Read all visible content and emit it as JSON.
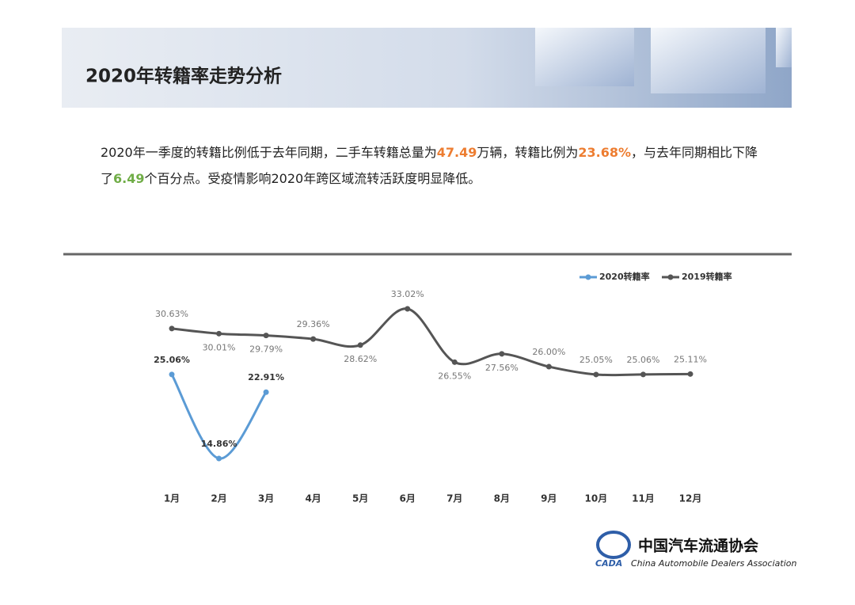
{
  "header": {
    "title": "2020年转籍率走势分析"
  },
  "paragraph": {
    "segments": [
      {
        "text": "2020年一季度的转籍比例低于去年同期，二手车转籍总量为",
        "color": "#222222"
      },
      {
        "text": "47.49",
        "color": "#ed7d31"
      },
      {
        "text": "万辆，转籍比例为",
        "color": "#222222"
      },
      {
        "text": "23.68%",
        "color": "#ed7d31"
      },
      {
        "text": "，与去年同期相比下降了",
        "color": "#222222"
      },
      {
        "text": "6.49",
        "color": "#70ad47"
      },
      {
        "text": "个百分点。受疫情影响2020年跨区域流转活跃度明显降低。",
        "color": "#222222"
      }
    ]
  },
  "chart_data": {
    "type": "line",
    "categories": [
      "1月",
      "2月",
      "3月",
      "4月",
      "5月",
      "6月",
      "7月",
      "8月",
      "9月",
      "10月",
      "11月",
      "12月"
    ],
    "series": [
      {
        "name": "2020转籍率",
        "color": "#5b9bd5",
        "values": [
          25.06,
          14.86,
          22.91,
          null,
          null,
          null,
          null,
          null,
          null,
          null,
          null,
          null
        ],
        "value_labels": [
          "25.06%",
          "14.86%",
          "22.91%",
          null,
          null,
          null,
          null,
          null,
          null,
          null,
          null,
          null
        ]
      },
      {
        "name": "2019转籍率",
        "color": "#555555",
        "values": [
          30.63,
          30.01,
          29.79,
          29.36,
          28.62,
          33.02,
          26.55,
          27.56,
          26.0,
          25.05,
          25.06,
          25.11
        ],
        "value_labels": [
          "30.63%",
          "30.01%",
          "29.79%",
          "29.36%",
          "28.62%",
          "33.02%",
          "26.55%",
          "27.56%",
          "26.00%",
          "25.05%",
          "25.06%",
          "25.11%"
        ]
      }
    ],
    "legend": "top-right",
    "smooth": true
  },
  "footer": {
    "org_cn": "中国汽车流通协会",
    "org_en": "China Automobile Dealers Association",
    "abbr": "CADA"
  }
}
